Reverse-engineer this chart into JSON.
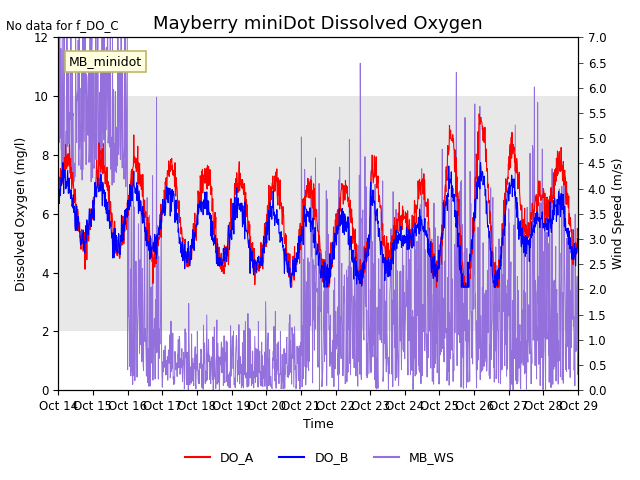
{
  "title": "Mayberry miniDot Dissolved Oxygen",
  "subtitle": "No data for f_DO_C",
  "xlabel": "Time",
  "ylabel_left": "Dissolved Oxygen (mg/l)",
  "ylabel_right": "Wind Speed (m/s)",
  "legend_label": "MB_minidot",
  "series_labels": [
    "DO_A",
    "DO_B",
    "MB_WS"
  ],
  "series_colors": [
    "red",
    "blue",
    "mediumpurple"
  ],
  "xlim": [
    0,
    15.0
  ],
  "ylim_left": [
    0,
    12
  ],
  "ylim_right": [
    0.0,
    7.0
  ],
  "yticks_left": [
    0,
    2,
    4,
    6,
    8,
    10,
    12
  ],
  "yticks_right": [
    0.0,
    0.5,
    1.0,
    1.5,
    2.0,
    2.5,
    3.0,
    3.5,
    4.0,
    4.5,
    5.0,
    5.5,
    6.0,
    6.5,
    7.0
  ],
  "xtick_labels": [
    "Oct 14",
    "Oct 15",
    "Oct 16",
    "Oct 17",
    "Oct 18",
    "Oct 19",
    "Oct 20",
    "Oct 21",
    "Oct 22",
    "Oct 23",
    "Oct 24",
    "Oct 25",
    "Oct 26",
    "Oct 27",
    "Oct 28",
    "Oct 29"
  ],
  "bg_band_y1": 2.0,
  "bg_band_y2": 10.0,
  "bg_band_color": "#e8e8e8",
  "title_fontsize": 13,
  "label_fontsize": 9,
  "tick_fontsize": 8.5
}
